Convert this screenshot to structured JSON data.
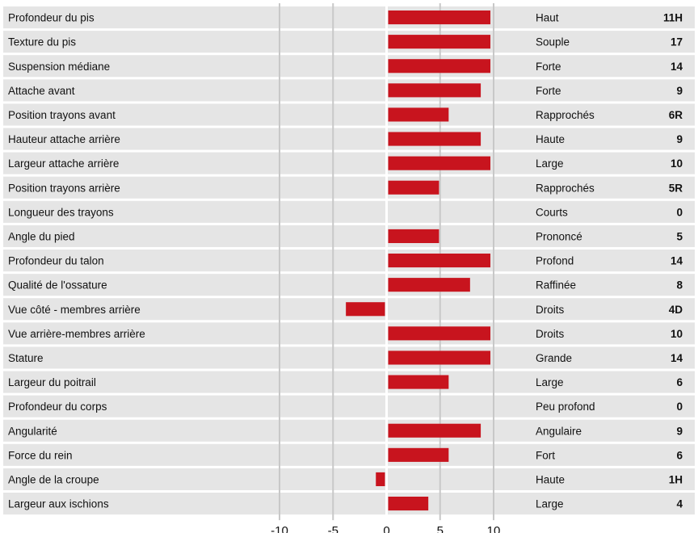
{
  "chart_data": {
    "type": "bar",
    "orientation": "horizontal",
    "title": "",
    "xlabel": "",
    "ylabel": "",
    "xlim": [
      -10,
      10
    ],
    "x_ticks": [
      -10,
      -5,
      0,
      5,
      10
    ],
    "grid": true,
    "bar_color": "#c8141e",
    "stripe_color": "#e5e5e5",
    "rows": [
      {
        "trait": "Profondeur du pis",
        "value": 9.7,
        "description": "Haut",
        "score": "11H"
      },
      {
        "trait": "Texture du pis",
        "value": 9.7,
        "description": "Souple",
        "score": "17"
      },
      {
        "trait": "Suspension médiane",
        "value": 9.7,
        "description": "Forte",
        "score": "14"
      },
      {
        "trait": "Attache avant",
        "value": 8.8,
        "description": "Forte",
        "score": "9"
      },
      {
        "trait": "Position trayons avant",
        "value": 5.8,
        "description": "Rapprochés",
        "score": "6R"
      },
      {
        "trait": "Hauteur attache arrière",
        "value": 8.8,
        "description": "Haute",
        "score": "9"
      },
      {
        "trait": "Largeur attache arrière",
        "value": 9.7,
        "description": "Large",
        "score": "10"
      },
      {
        "trait": "Position trayons arrière",
        "value": 4.9,
        "description": "Rapprochés",
        "score": "5R"
      },
      {
        "trait": "Longueur des trayons",
        "value": 0,
        "description": "Courts",
        "score": "0"
      },
      {
        "trait": "Angle du pied",
        "value": 4.9,
        "description": "Prononcé",
        "score": "5"
      },
      {
        "trait": "Profondeur du talon",
        "value": 9.7,
        "description": "Profond",
        "score": "14"
      },
      {
        "trait": "Qualité de l'ossature",
        "value": 7.8,
        "description": "Raffinée",
        "score": "8"
      },
      {
        "trait": "Vue côté - membres arrière",
        "value": -3.8,
        "description": "Droits",
        "score": "4D"
      },
      {
        "trait": "Vue arrière-membres arrière",
        "value": 9.7,
        "description": "Droits",
        "score": "10"
      },
      {
        "trait": "Stature",
        "value": 9.7,
        "description": "Grande",
        "score": "14"
      },
      {
        "trait": "Largeur du poitrail",
        "value": 5.8,
        "description": "Large",
        "score": "6"
      },
      {
        "trait": "Profondeur du corps",
        "value": 0,
        "description": "Peu profond",
        "score": "0"
      },
      {
        "trait": "Angularité",
        "value": 8.8,
        "description": "Angulaire",
        "score": "9"
      },
      {
        "trait": "Force du rein",
        "value": 5.8,
        "description": "Fort",
        "score": "6"
      },
      {
        "trait": "Angle de la croupe",
        "value": -1.0,
        "description": "Haute",
        "score": "1H"
      },
      {
        "trait": "Largeur aux ischions",
        "value": 3.9,
        "description": "Large",
        "score": "4"
      }
    ]
  }
}
